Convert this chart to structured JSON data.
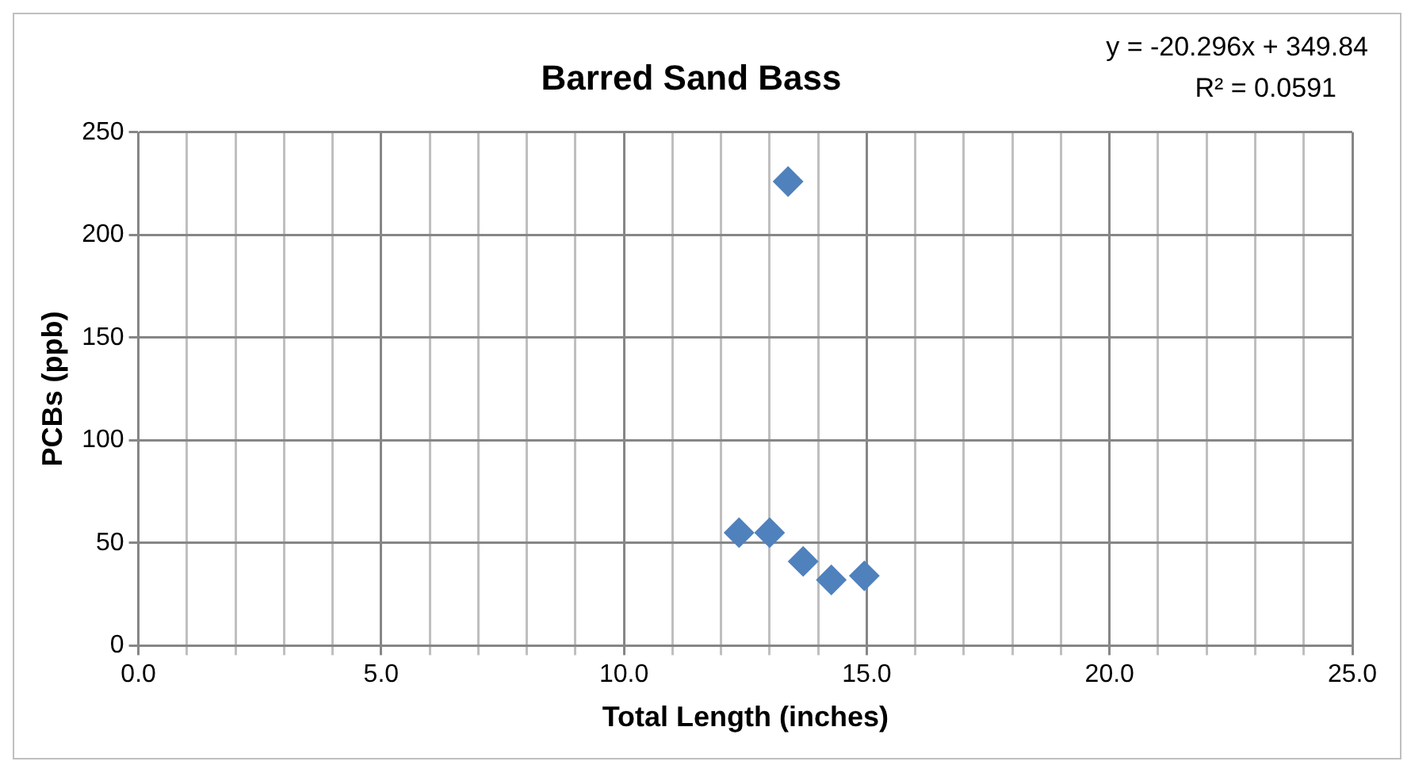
{
  "chart_data": {
    "type": "scatter",
    "title": "Barred Sand Bass",
    "xlabel": "Total Length (inches)",
    "ylabel": "PCBs (ppb)",
    "annotations": [
      "y = -20.296x + 349.84",
      "R² = 0.0591"
    ],
    "series": [
      {
        "color": "#4f81bd",
        "x": [
          12.37,
          13.0,
          13.38,
          13.69,
          14.27,
          14.95
        ],
        "values": [
          55,
          55,
          226,
          41,
          32,
          34
        ]
      }
    ],
    "xlim": [
      0,
      25
    ],
    "xticks": [
      {
        "value": 0,
        "label": "0.0"
      },
      {
        "value": 1,
        "label": null
      },
      {
        "value": 2,
        "label": null
      },
      {
        "value": 3,
        "label": null
      },
      {
        "value": 4,
        "label": null
      },
      {
        "value": 5,
        "label": "5.0"
      },
      {
        "value": 6,
        "label": null
      },
      {
        "value": 7,
        "label": null
      },
      {
        "value": 8,
        "label": null
      },
      {
        "value": 9,
        "label": null
      },
      {
        "value": 10,
        "label": "10.0"
      },
      {
        "value": 11,
        "label": null
      },
      {
        "value": 12,
        "label": null
      },
      {
        "value": 13,
        "label": null
      },
      {
        "value": 14,
        "label": null
      },
      {
        "value": 15,
        "label": "15.0"
      },
      {
        "value": 16,
        "label": null
      },
      {
        "value": 17,
        "label": null
      },
      {
        "value": 18,
        "label": null
      },
      {
        "value": 19,
        "label": null
      },
      {
        "value": 20,
        "label": "20.0"
      },
      {
        "value": 21,
        "label": null
      },
      {
        "value": 22,
        "label": null
      },
      {
        "value": 23,
        "label": null
      },
      {
        "value": 24,
        "label": null
      },
      {
        "value": 25,
        "label": "25.0"
      }
    ],
    "ylim": [
      0,
      250
    ],
    "yticks": [
      0,
      50,
      100,
      150,
      200,
      250
    ],
    "grid": true,
    "legend": false,
    "marker": "diamond"
  }
}
